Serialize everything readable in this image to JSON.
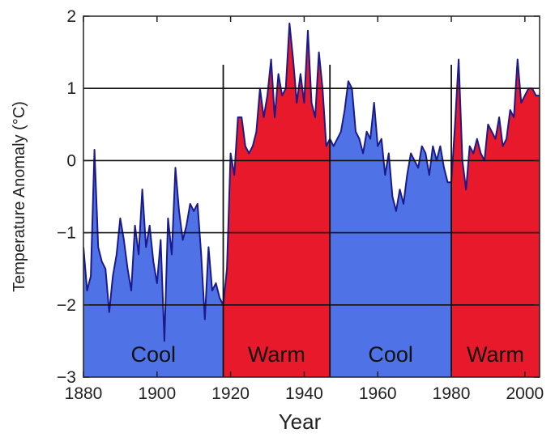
{
  "chart_data": {
    "type": "area",
    "title": "",
    "xlabel": "Year",
    "ylabel": "Temperature Anomaly (°C)",
    "xlim": [
      1880,
      2004
    ],
    "ylim": [
      -3,
      2
    ],
    "x_ticks": [
      1880,
      1900,
      1920,
      1940,
      1960,
      1980,
      2000
    ],
    "y_ticks": [
      2,
      1,
      0,
      -1,
      -2,
      -3
    ],
    "y_tick_labels": [
      "2",
      "1",
      "0",
      "−1",
      "−2",
      "−3"
    ],
    "grid": "horizontal lines at y = 1, 0, -1, -2",
    "line_color": "#1a1a8c",
    "periods": [
      {
        "label": "Cool",
        "start": 1880,
        "end": 1918,
        "color": "#4f73e6"
      },
      {
        "label": "Warm",
        "start": 1918,
        "end": 1947,
        "color": "#e8192a"
      },
      {
        "label": "Cool",
        "start": 1947,
        "end": 1980,
        "color": "#4f73e6"
      },
      {
        "label": "Warm",
        "start": 1980,
        "end": 2004,
        "color": "#e8192a"
      }
    ],
    "series": [
      {
        "x": [
          1880,
          1881,
          1882,
          1883,
          1884,
          1885,
          1886,
          1887,
          1888,
          1889,
          1890,
          1891,
          1892,
          1893,
          1894,
          1895,
          1896,
          1897,
          1898,
          1899,
          1900,
          1901,
          1902,
          1903,
          1904,
          1905,
          1906,
          1907,
          1908,
          1909,
          1910,
          1911,
          1912,
          1913,
          1914,
          1915,
          1916,
          1917,
          1918,
          1919,
          1920,
          1921,
          1922,
          1923,
          1924,
          1925,
          1926,
          1927,
          1928,
          1929,
          1930,
          1931,
          1932,
          1933,
          1934,
          1935,
          1936,
          1937,
          1938,
          1939,
          1940,
          1941,
          1942,
          1943,
          1944,
          1945,
          1946,
          1947,
          1948,
          1949,
          1950,
          1951,
          1952,
          1953,
          1954,
          1955,
          1956,
          1957,
          1958,
          1959,
          1960,
          1961,
          1962,
          1963,
          1964,
          1965,
          1966,
          1967,
          1968,
          1969,
          1970,
          1971,
          1972,
          1973,
          1974,
          1975,
          1976,
          1977,
          1978,
          1979,
          1980,
          1981,
          1982,
          1983,
          1984,
          1985,
          1986,
          1987,
          1988,
          1989,
          1990,
          1991,
          1992,
          1993,
          1994,
          1995,
          1996,
          1997,
          1998,
          1999,
          2000,
          2001,
          2002,
          2003,
          2004
        ],
        "values": [
          -1.2,
          -1.8,
          -1.6,
          0.15,
          -1.2,
          -1.4,
          -1.5,
          -2.1,
          -1.6,
          -1.3,
          -0.8,
          -1.1,
          -1.5,
          -1.8,
          -0.9,
          -1.3,
          -0.4,
          -1.2,
          -0.9,
          -1.4,
          -1.7,
          -1.1,
          -2.5,
          -0.8,
          -1.3,
          -0.1,
          -0.7,
          -1.1,
          -0.9,
          -0.6,
          -0.7,
          -0.6,
          -1.3,
          -2.2,
          -1.2,
          -1.8,
          -1.7,
          -1.9,
          -2.0,
          -1.5,
          0.1,
          -0.2,
          0.6,
          0.6,
          0.2,
          0.1,
          0.2,
          0.4,
          1.0,
          0.6,
          0.9,
          1.4,
          0.6,
          1.2,
          0.9,
          1.0,
          1.9,
          1.4,
          0.8,
          1.2,
          0.8,
          1.8,
          0.8,
          0.6,
          1.5,
          1.0,
          0.2,
          0.3,
          0.2,
          0.3,
          0.4,
          0.7,
          1.1,
          1.0,
          0.4,
          0.3,
          0.1,
          0.4,
          0.3,
          0.8,
          0.2,
          0.3,
          -0.2,
          0.1,
          -0.5,
          -0.7,
          -0.4,
          -0.6,
          -0.2,
          0.1,
          0.0,
          -0.1,
          0.2,
          0.1,
          -0.2,
          0.2,
          0.0,
          0.2,
          -0.1,
          -0.3,
          -0.3,
          0.5,
          1.4,
          0.0,
          -0.4,
          0.2,
          0.1,
          0.3,
          0.1,
          0.0,
          0.5,
          0.4,
          0.3,
          0.6,
          0.2,
          0.3,
          0.7,
          0.6,
          1.4,
          0.8,
          0.9,
          1.0,
          1.0,
          0.9,
          0.9
        ]
      }
    ]
  }
}
